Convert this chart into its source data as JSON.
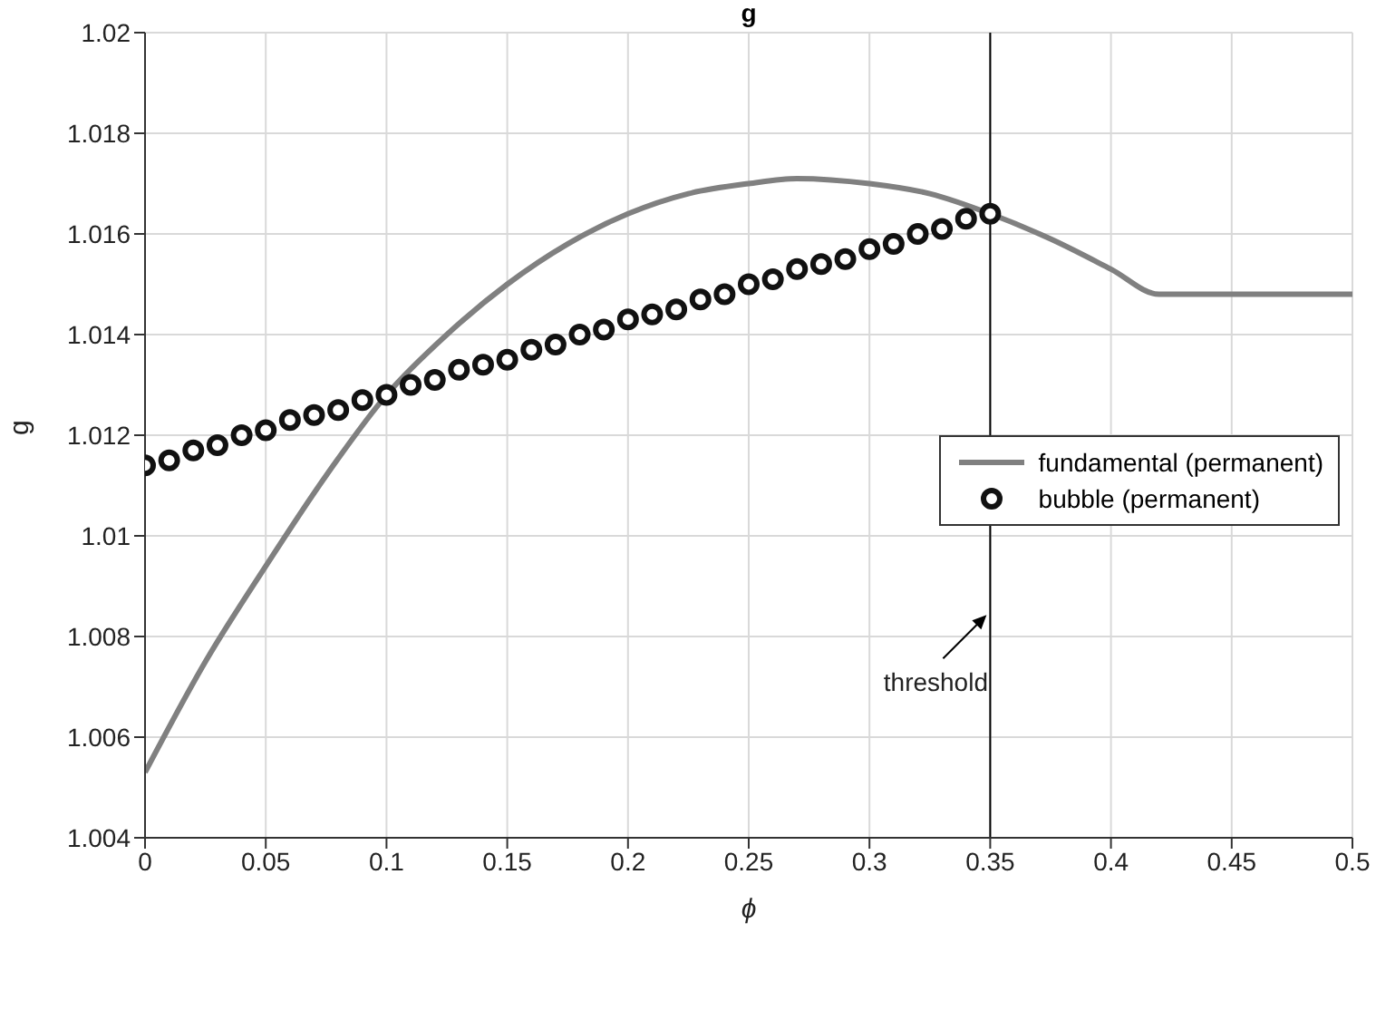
{
  "chart_data": {
    "type": "line",
    "title": "g",
    "xlabel": "ϕ",
    "ylabel": "g",
    "xlim": [
      0,
      0.5
    ],
    "ylim": [
      1.004,
      1.02
    ],
    "xticks": [
      0,
      0.05,
      0.1,
      0.15,
      0.2,
      0.25,
      0.3,
      0.35,
      0.4,
      0.45,
      0.5
    ],
    "yticks": [
      1.004,
      1.006,
      1.008,
      1.01,
      1.012,
      1.014,
      1.016,
      1.018,
      1.02
    ],
    "grid": true,
    "legend": "right",
    "line_style": "solid",
    "series": [
      {
        "name": "fundamental (permanent)",
        "marker": "none",
        "color": "#808080",
        "x": [
          0,
          0.025,
          0.05,
          0.075,
          0.1,
          0.125,
          0.15,
          0.175,
          0.2,
          0.225,
          0.25,
          0.27,
          0.3,
          0.325,
          0.35,
          0.375,
          0.4,
          0.42,
          0.45,
          0.5
        ],
        "values": [
          1.0053,
          1.0075,
          1.0094,
          1.0112,
          1.0128,
          1.014,
          1.015,
          1.0158,
          1.0164,
          1.0168,
          1.017,
          1.0171,
          1.017,
          1.0168,
          1.0164,
          1.0159,
          1.0153,
          1.0148,
          1.0148,
          1.0148
        ]
      },
      {
        "name": "bubble (permanent)",
        "type": "scatter",
        "marker": "circle",
        "color": "#111111",
        "x": [
          0,
          0.01,
          0.02,
          0.03,
          0.04,
          0.05,
          0.06,
          0.07,
          0.08,
          0.09,
          0.1,
          0.11,
          0.12,
          0.13,
          0.14,
          0.15,
          0.16,
          0.17,
          0.18,
          0.19,
          0.2,
          0.21,
          0.22,
          0.23,
          0.24,
          0.25,
          0.26,
          0.27,
          0.28,
          0.29,
          0.3,
          0.31,
          0.32,
          0.33,
          0.34,
          0.35
        ],
        "values": [
          1.0114,
          1.0115,
          1.0117,
          1.0118,
          1.012,
          1.0121,
          1.0123,
          1.0124,
          1.0125,
          1.0127,
          1.0128,
          1.013,
          1.0131,
          1.0133,
          1.0134,
          1.0135,
          1.0137,
          1.0138,
          1.014,
          1.0141,
          1.0143,
          1.0144,
          1.0145,
          1.0147,
          1.0148,
          1.015,
          1.0151,
          1.0153,
          1.0154,
          1.0155,
          1.0157,
          1.0158,
          1.016,
          1.0161,
          1.0163,
          1.0164
        ]
      }
    ],
    "ref_lines": [
      {
        "axis": "x",
        "value": 0.35,
        "color": "#000000"
      }
    ],
    "annotations": [
      {
        "text": "threshold",
        "x": 0.35,
        "y": 1.0085
      }
    ]
  }
}
